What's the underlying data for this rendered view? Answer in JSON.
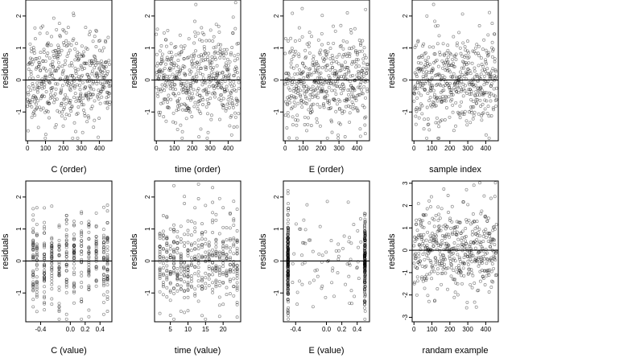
{
  "chart_data": [
    {
      "type": "scatter",
      "xlabel": "C (order)",
      "ylabel": "residuals",
      "xlim": [
        -10,
        470
      ],
      "ylim": [
        -1.9,
        2.5
      ],
      "xticks": [
        0,
        100,
        200,
        300,
        400
      ],
      "xtick_labels": [
        "0",
        "100",
        "200",
        "300",
        "400"
      ],
      "yticks": [
        -1,
        0,
        1,
        2
      ],
      "ytick_labels": [
        "-1",
        "0",
        "1",
        "2"
      ],
      "hline": 0,
      "x_kind": "index",
      "n": 480,
      "seed": 11
    },
    {
      "type": "scatter",
      "xlabel": "time (order)",
      "ylabel": "residuals",
      "xlim": [
        -10,
        470
      ],
      "ylim": [
        -1.9,
        2.5
      ],
      "xticks": [
        0,
        100,
        200,
        300,
        400
      ],
      "xtick_labels": [
        "0",
        "100",
        "200",
        "300",
        "400"
      ],
      "yticks": [
        -1,
        0,
        1,
        2
      ],
      "ytick_labels": [
        "-1",
        "0",
        "1",
        "2"
      ],
      "hline": 0,
      "x_kind": "index",
      "n": 480,
      "seed": 23
    },
    {
      "type": "scatter",
      "xlabel": "E (order)",
      "ylabel": "residuals",
      "xlim": [
        -10,
        470
      ],
      "ylim": [
        -1.9,
        2.5
      ],
      "xticks": [
        0,
        100,
        200,
        300,
        400
      ],
      "xtick_labels": [
        "0",
        "100",
        "200",
        "300",
        "400"
      ],
      "yticks": [
        -1,
        0,
        1,
        2
      ],
      "ytick_labels": [
        "-1",
        "0",
        "1",
        "2"
      ],
      "hline": 0,
      "x_kind": "index",
      "n": 480,
      "seed": 37
    },
    {
      "type": "scatter",
      "xlabel": "sample index",
      "ylabel": "residuals",
      "xlim": [
        -10,
        470
      ],
      "ylim": [
        -1.9,
        2.5
      ],
      "xticks": [
        0,
        100,
        200,
        300,
        400
      ],
      "xtick_labels": [
        "0",
        "100",
        "200",
        "300",
        "400"
      ],
      "yticks": [
        -1,
        0,
        1,
        2
      ],
      "ytick_labels": [
        "-1",
        "0",
        "1",
        "2"
      ],
      "hline": 0,
      "x_kind": "index",
      "n": 480,
      "seed": 41
    },
    {
      "type": "scatter",
      "xlabel": "C (value)",
      "ylabel": "residuals",
      "xlim": [
        -0.6,
        0.56
      ],
      "ylim": [
        -1.9,
        2.5
      ],
      "xticks": [
        -0.4,
        0.0,
        0.2,
        0.4
      ],
      "xtick_labels": [
        "-0.4",
        "0.0",
        "0.2",
        "0.4"
      ],
      "yticks": [
        -1,
        0,
        1,
        2
      ],
      "ytick_labels": [
        "-1",
        "0",
        "1",
        "2"
      ],
      "hline": 0,
      "x_kind": "discrete",
      "x_levels": [
        -0.5,
        -0.45,
        -0.35,
        -0.25,
        -0.15,
        -0.05,
        0.05,
        0.15,
        0.25,
        0.35,
        0.45,
        0.5
      ],
      "n": 420,
      "seed": 53
    },
    {
      "type": "scatter",
      "xlabel": "time (value)",
      "ylabel": "residuals",
      "xlim": [
        0.5,
        25
      ],
      "ylim": [
        -1.9,
        2.5
      ],
      "xticks": [
        5,
        10,
        15,
        20
      ],
      "xtick_labels": [
        "5",
        "10",
        "15",
        "20"
      ],
      "yticks": [
        -1,
        0,
        1,
        2
      ],
      "ytick_labels": [
        "-1",
        "0",
        "1",
        "2"
      ],
      "hline": 0,
      "x_kind": "discrete",
      "x_levels": [
        2,
        3,
        4,
        5,
        6,
        7,
        8,
        9,
        10,
        11,
        12,
        13,
        14,
        15,
        16,
        17,
        18,
        19,
        20,
        21,
        22,
        23,
        24
      ],
      "n": 440,
      "seed": 67
    },
    {
      "type": "scatter",
      "xlabel": "E (value)",
      "ylabel": "residuals",
      "xlim": [
        -0.56,
        0.56
      ],
      "ylim": [
        -1.9,
        2.5
      ],
      "xticks": [
        -0.4,
        0.0,
        0.2,
        0.4
      ],
      "xtick_labels": [
        "-0.4",
        "0.0",
        "0.2",
        "0.4"
      ],
      "yticks": [
        -1,
        0,
        1,
        2
      ],
      "ytick_labels": [
        "-1",
        "0",
        "1",
        "2"
      ],
      "hline": 0,
      "x_kind": "edges",
      "x_levels": [
        -0.5,
        0.5
      ],
      "n": 420,
      "seed": 79
    },
    {
      "type": "scatter",
      "xlabel": "randam example",
      "ylabel": "residuals",
      "xlim": [
        -10,
        470
      ],
      "ylim": [
        -3.2,
        3.1
      ],
      "xticks": [
        0,
        100,
        200,
        300,
        400
      ],
      "xtick_labels": [
        "0",
        "100",
        "200",
        "300",
        "400"
      ],
      "yticks": [
        -3,
        -2,
        -1,
        0,
        1,
        2,
        3
      ],
      "ytick_labels": [
        "-3",
        "-2",
        "-1",
        "0",
        "1",
        "2",
        "3"
      ],
      "hline": 0,
      "x_kind": "index",
      "n": 480,
      "seed": 97
    }
  ]
}
